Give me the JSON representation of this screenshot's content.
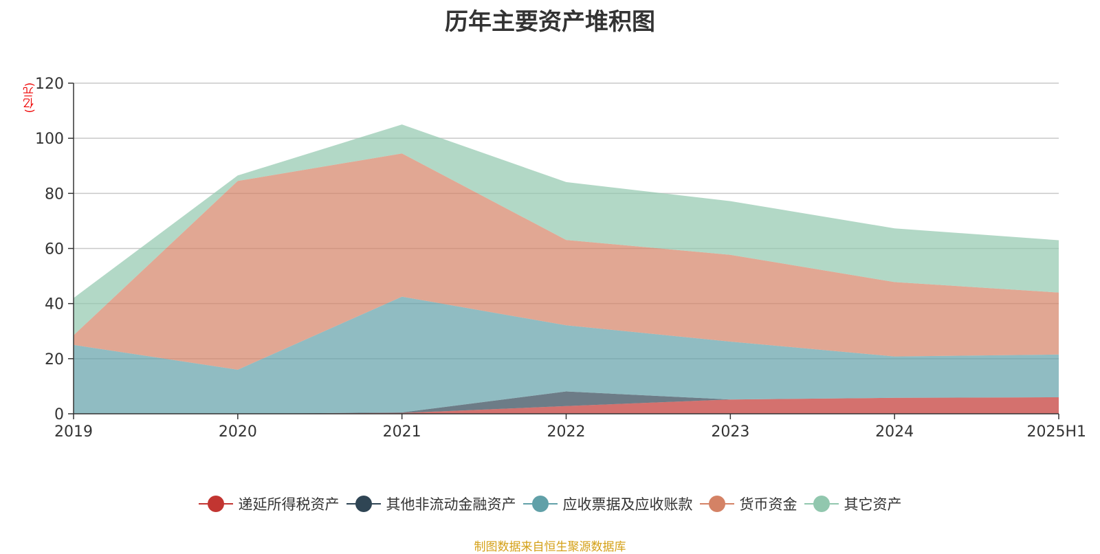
{
  "title": "历年主要资产堆积图",
  "unit": "(亿元)",
  "footer": "制图数据来自恒生聚源数据库",
  "chart_data": {
    "type": "area",
    "stacked": true,
    "categories": [
      "2019",
      "2020",
      "2021",
      "2022",
      "2023",
      "2024",
      "2025H1"
    ],
    "ylim": [
      0,
      120
    ],
    "yticks": [
      0,
      20,
      40,
      60,
      80,
      100,
      120
    ],
    "grid": true,
    "legend_position": "bottom",
    "series": [
      {
        "name": "递延所得税资产",
        "color": "#c23531",
        "values": [
          0,
          0,
          0.3,
          2.8,
          5.2,
          5.8,
          6.0
        ]
      },
      {
        "name": "其他非流动金融资产",
        "color": "#2f4554",
        "values": [
          0,
          0,
          0.2,
          5.3,
          0,
          0,
          0
        ]
      },
      {
        "name": "应收票据及应收账款",
        "color": "#61a0a8",
        "values": [
          25,
          16,
          42,
          24,
          21,
          15,
          15.5
        ]
      },
      {
        "name": "货币资金",
        "color": "#d48265",
        "values": [
          3.5,
          68.5,
          52,
          31,
          31.5,
          27,
          22.5
        ]
      },
      {
        "name": "其它资产",
        "color": "#91c7ae",
        "values": [
          13.5,
          2,
          10.5,
          21,
          19.5,
          19.5,
          19
        ]
      }
    ]
  }
}
